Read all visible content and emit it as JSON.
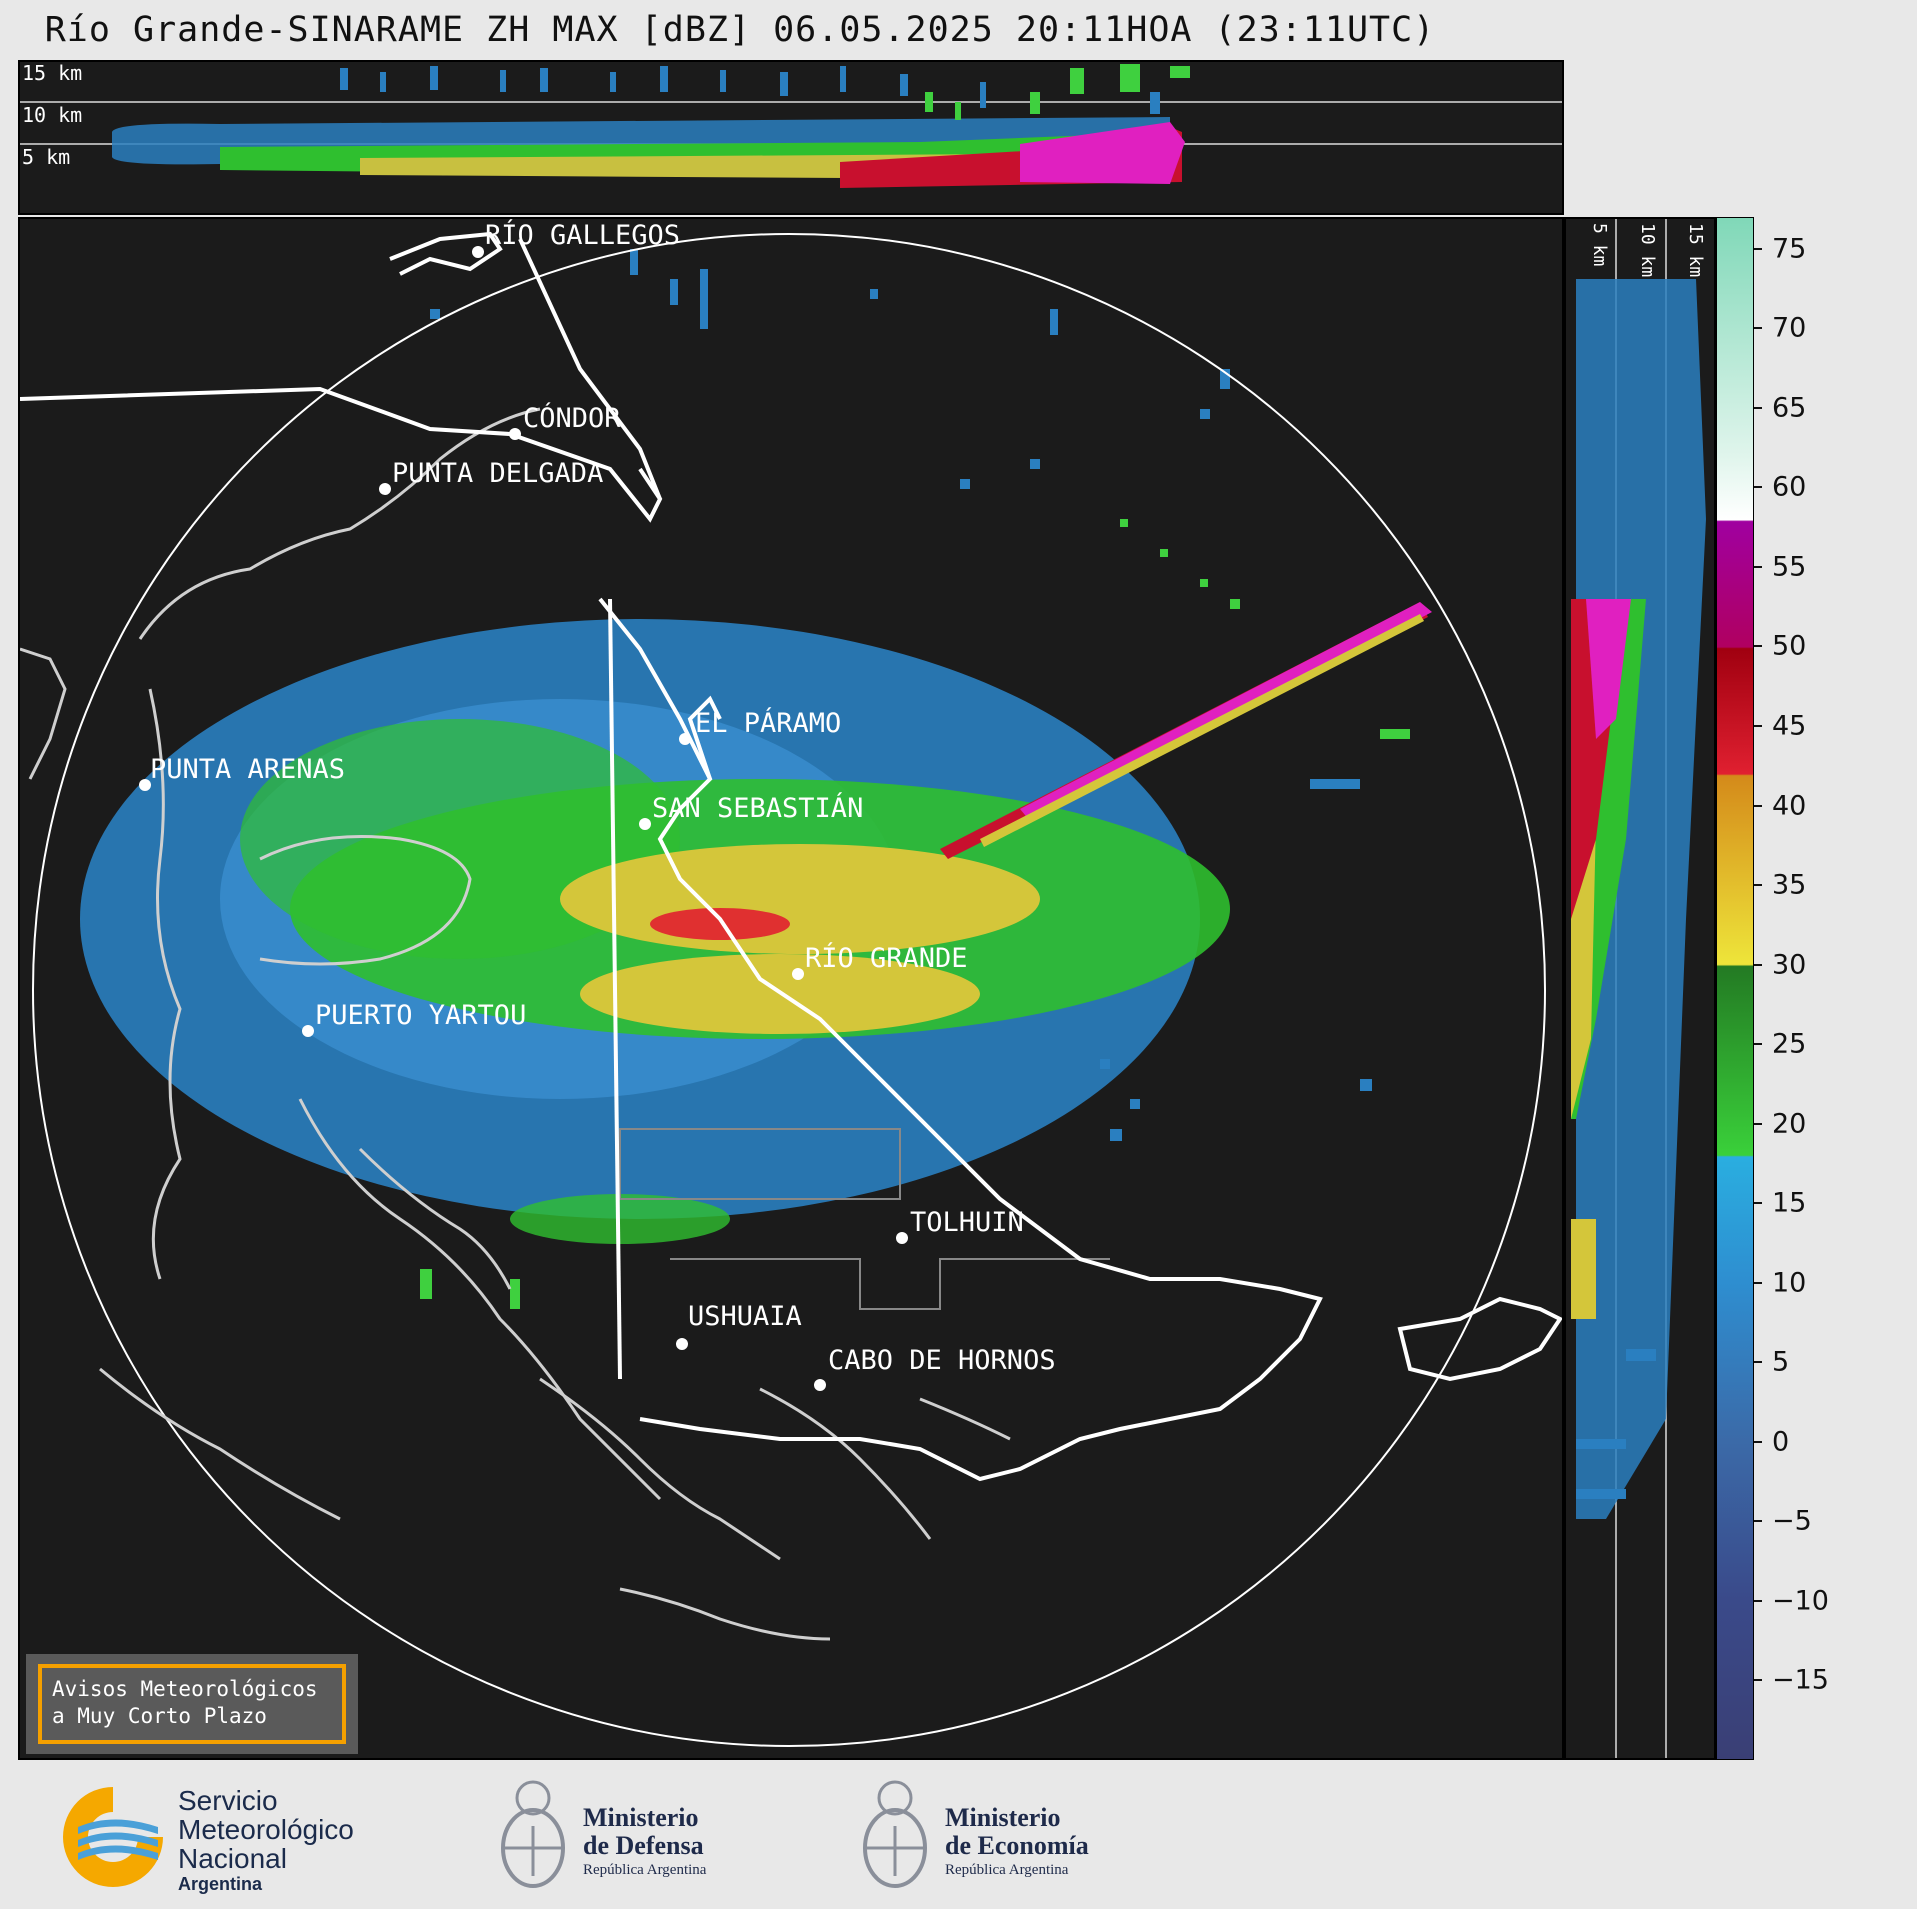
{
  "title": "Río Grande-SINARAME ZH MAX [dBZ] 06.05.2025 20:11HOA (23:11UTC)",
  "top_panel": {
    "height_labels": [
      "15 km",
      "10 km",
      "5 km"
    ]
  },
  "side_panel": {
    "height_labels": [
      "5 km",
      "10 km",
      "15 km"
    ]
  },
  "places": [
    {
      "name": "RÍO GALLEGOS"
    },
    {
      "name": "CÓNDOR"
    },
    {
      "name": "PUNTA DELGADA"
    },
    {
      "name": "EL PÁRAMO"
    },
    {
      "name": "PUNTA ARENAS"
    },
    {
      "name": "SAN SEBASTIÁN"
    },
    {
      "name": "RÍO GRANDE"
    },
    {
      "name": "PUERTO YARTOU"
    },
    {
      "name": "TOLHUIN"
    },
    {
      "name": "USHUAIA"
    },
    {
      "name": "CABO DE HORNOS"
    }
  ],
  "colorbar": {
    "unit": "dBZ",
    "range": [
      -20,
      77
    ],
    "ticks": [
      "75",
      "70",
      "65",
      "60",
      "55",
      "50",
      "45",
      "40",
      "35",
      "30",
      "25",
      "20",
      "15",
      "10",
      "5",
      "0",
      "−5",
      "−10",
      "−15"
    ],
    "colors": {
      "below_0": "#3a4a8a",
      "0_to_18": "#2e8ed0",
      "18_to_30": "#2fbf2f",
      "30_to_42": "#d4c63a",
      "42_to_50": "#c8102e",
      "50_to_58": "#e020d0",
      "58_to_62": "#ffffff",
      "62_plus": "#8ee0c0"
    }
  },
  "warning_box": {
    "line1": "Avisos Meteorológicos",
    "line2": "a Muy Corto Plazo"
  },
  "footer": {
    "smn": {
      "line1": "Servicio",
      "line2": "Meteorológico",
      "line3": "Nacional",
      "line4": "Argentina"
    },
    "defensa": {
      "line1": "Ministerio",
      "line2": "de Defensa",
      "line3": "República Argentina"
    },
    "economia": {
      "line1": "Ministerio",
      "line2": "de Economía",
      "line3": "República Argentina"
    }
  }
}
